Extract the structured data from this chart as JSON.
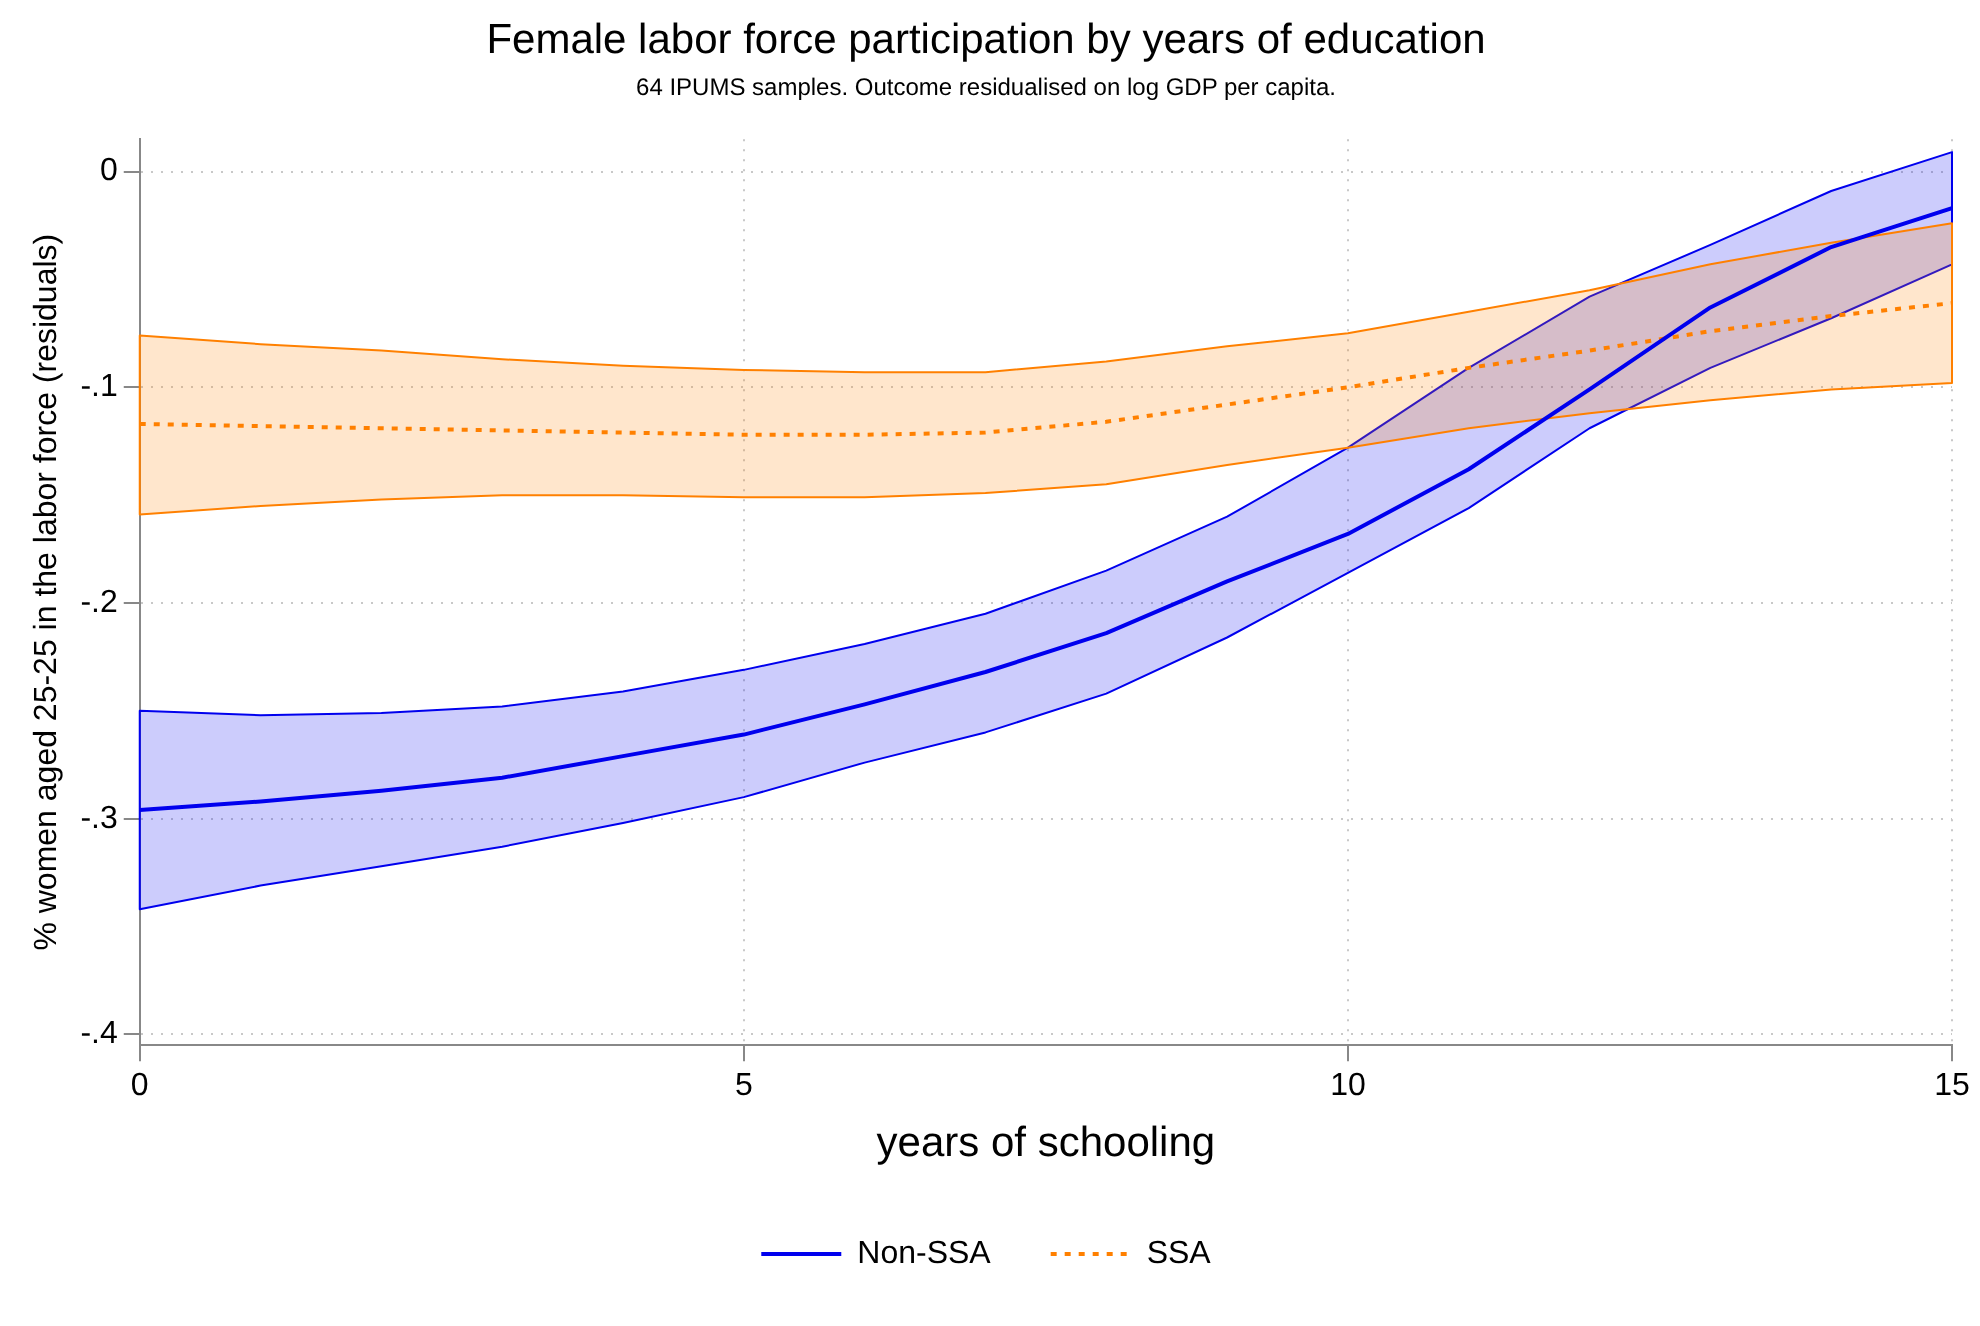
{
  "chart_data": {
    "type": "line",
    "title": "Female labor force participation by years of education",
    "subtitle": "64 IPUMS samples. Outcome residualised on log GDP per capita.",
    "xlabel": "years of schooling",
    "ylabel": "% women aged 25-25 in the labor force (residuals)",
    "x": [
      0,
      1,
      2,
      3,
      4,
      5,
      6,
      7,
      8,
      9,
      10,
      11,
      12,
      13,
      14,
      15
    ],
    "series": [
      {
        "name": "Non-SSA",
        "color": "#0000ee",
        "line_style": "solid",
        "values": [
          -0.296,
          -0.292,
          -0.287,
          -0.281,
          -0.271,
          -0.261,
          -0.247,
          -0.232,
          -0.214,
          -0.19,
          -0.168,
          -0.138,
          -0.101,
          -0.063,
          -0.035,
          -0.017
        ],
        "lower": [
          -0.342,
          -0.331,
          -0.322,
          -0.313,
          -0.302,
          -0.29,
          -0.274,
          -0.26,
          -0.242,
          -0.216,
          -0.186,
          -0.156,
          -0.119,
          -0.091,
          -0.068,
          -0.043
        ],
        "upper": [
          -0.25,
          -0.252,
          -0.251,
          -0.248,
          -0.241,
          -0.231,
          -0.219,
          -0.205,
          -0.185,
          -0.16,
          -0.128,
          -0.091,
          -0.058,
          -0.034,
          -0.009,
          0.009
        ]
      },
      {
        "name": "SSA",
        "color": "#ff8000",
        "line_style": "dotted",
        "values": [
          -0.117,
          -0.118,
          -0.119,
          -0.12,
          -0.121,
          -0.122,
          -0.122,
          -0.121,
          -0.116,
          -0.108,
          -0.1,
          -0.091,
          -0.083,
          -0.074,
          -0.067,
          -0.061
        ],
        "lower": [
          -0.159,
          -0.155,
          -0.152,
          -0.15,
          -0.15,
          -0.151,
          -0.151,
          -0.149,
          -0.145,
          -0.136,
          -0.128,
          -0.119,
          -0.112,
          -0.106,
          -0.101,
          -0.098
        ],
        "upper": [
          -0.076,
          -0.08,
          -0.083,
          -0.087,
          -0.09,
          -0.092,
          -0.093,
          -0.093,
          -0.088,
          -0.081,
          -0.075,
          -0.065,
          -0.055,
          -0.043,
          -0.033,
          -0.024
        ]
      }
    ],
    "xlim": [
      0,
      15
    ],
    "xticks": [
      0,
      5,
      10,
      15
    ],
    "ylim": [
      -0.405,
      0.015
    ],
    "yticks": [
      {
        "value": -0.4,
        "label": "-.4"
      },
      {
        "value": -0.3,
        "label": "-.3"
      },
      {
        "value": -0.2,
        "label": "-.2"
      },
      {
        "value": -0.1,
        "label": "-.1"
      },
      {
        "value": 0,
        "label": "0"
      }
    ],
    "grid": true,
    "legend": "bottom",
    "marker": "none"
  }
}
